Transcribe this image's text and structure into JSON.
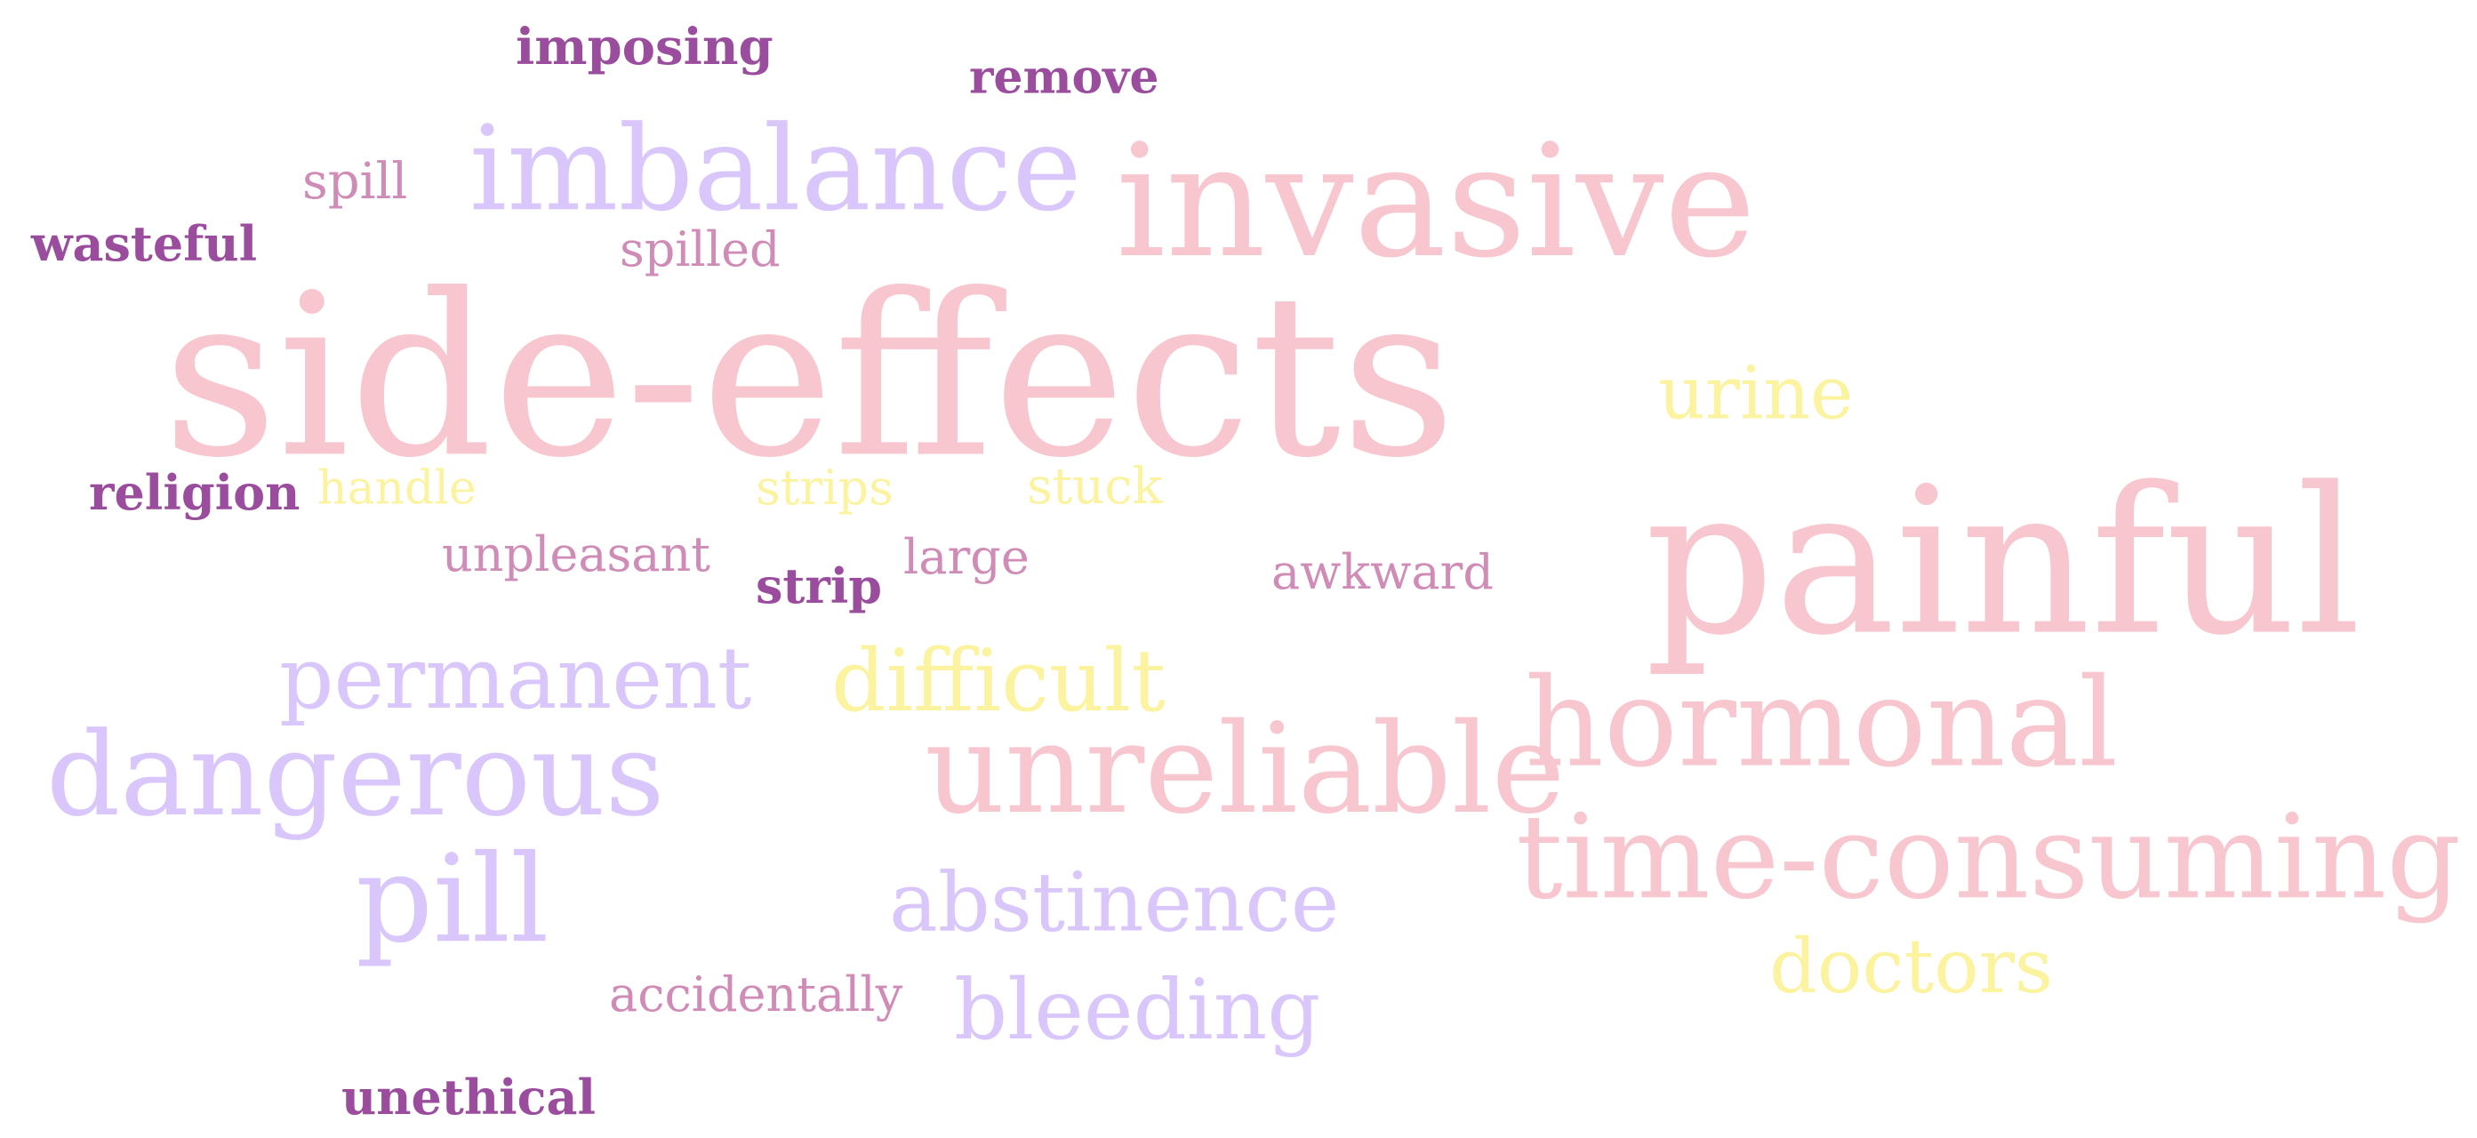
{
  "palette": {
    "pink": "#f7c6cf",
    "lavender": "#d9c6fb",
    "yellow": "#fbf3a0",
    "mauve": "#cf8cb6",
    "purple": "#9b4d9d"
  },
  "words": [
    {
      "text": "side-effects",
      "color": "pink"
    },
    {
      "text": "invasive",
      "color": "pink"
    },
    {
      "text": "imbalance",
      "color": "lavender"
    },
    {
      "text": "painful",
      "color": "pink"
    },
    {
      "text": "hormonal",
      "color": "pink"
    },
    {
      "text": "time-consuming",
      "color": "pink"
    },
    {
      "text": "unreliable",
      "color": "pink"
    },
    {
      "text": "dangerous",
      "color": "lavender"
    },
    {
      "text": "permanent",
      "color": "lavender"
    },
    {
      "text": "pill",
      "color": "lavender"
    },
    {
      "text": "difficult",
      "color": "yellow"
    },
    {
      "text": "abstinence",
      "color": "lavender"
    },
    {
      "text": "bleeding",
      "color": "lavender"
    },
    {
      "text": "doctors",
      "color": "yellow"
    },
    {
      "text": "urine",
      "color": "yellow"
    },
    {
      "text": "imposing",
      "color": "purple"
    },
    {
      "text": "remove",
      "color": "purple"
    },
    {
      "text": "spill",
      "color": "mauve"
    },
    {
      "text": "wasteful",
      "color": "purple"
    },
    {
      "text": "spilled",
      "color": "mauve"
    },
    {
      "text": "religion",
      "color": "purple"
    },
    {
      "text": "handle",
      "color": "yellow"
    },
    {
      "text": "strips",
      "color": "yellow"
    },
    {
      "text": "stuck",
      "color": "yellow"
    },
    {
      "text": "unpleasant",
      "color": "mauve"
    },
    {
      "text": "large",
      "color": "mauve"
    },
    {
      "text": "strip",
      "color": "purple"
    },
    {
      "text": "awkward",
      "color": "mauve"
    },
    {
      "text": "accidentally",
      "color": "mauve"
    },
    {
      "text": "unethical",
      "color": "purple"
    }
  ]
}
